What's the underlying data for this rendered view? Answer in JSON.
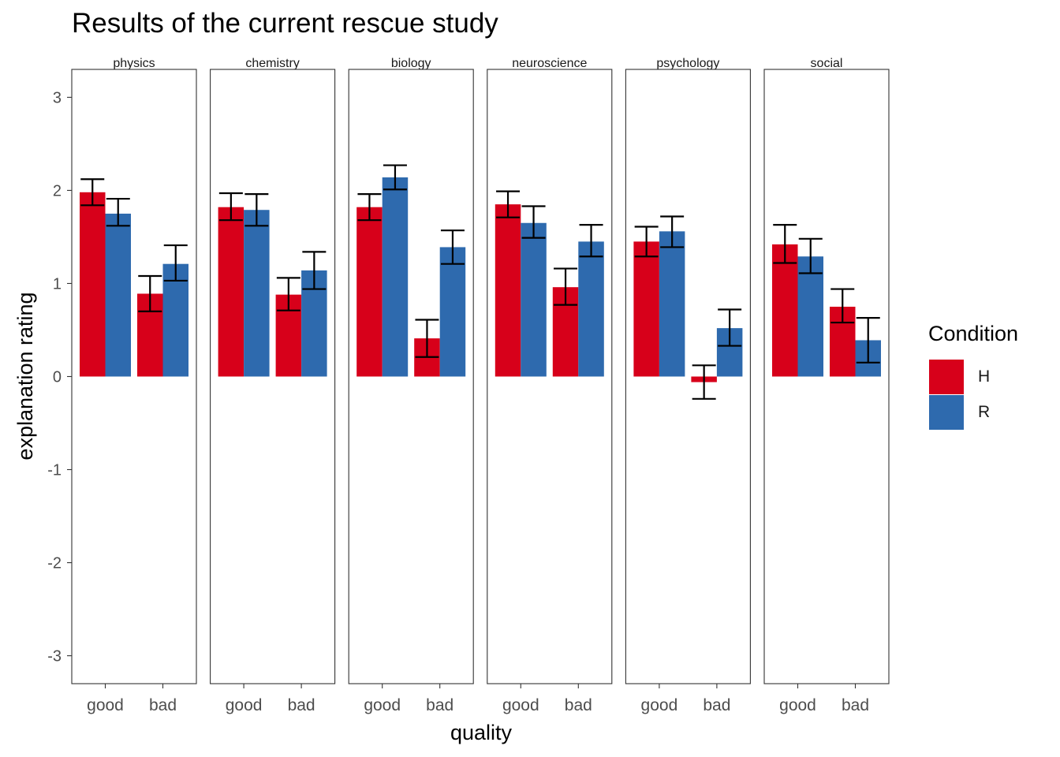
{
  "chart_data": {
    "type": "bar",
    "title": "Results of the current rescue study",
    "xlabel": "quality",
    "ylabel": "explanation rating",
    "ylim": [
      -3.3,
      3.3
    ],
    "yticks": [
      "-3",
      "-2",
      "-1",
      "0",
      "1",
      "2",
      "3"
    ],
    "ytick_values": [
      -3,
      -2,
      -1,
      0,
      1,
      2,
      3
    ],
    "categories": [
      "good",
      "bad"
    ],
    "grid": false,
    "legend": {
      "title": "Condition",
      "placement": "right",
      "entries": [
        {
          "label": "H",
          "color": "#D7001A"
        },
        {
          "label": "R",
          "color": "#2E6AAE"
        }
      ]
    },
    "facets": [
      {
        "name": "physics",
        "series": [
          {
            "name": "H",
            "values": [
              1.98,
              0.89
            ],
            "error_low": [
              1.84,
              0.7
            ],
            "error_high": [
              2.12,
              1.08
            ]
          },
          {
            "name": "R",
            "values": [
              1.75,
              1.21
            ],
            "error_low": [
              1.62,
              1.03
            ],
            "error_high": [
              1.91,
              1.41
            ]
          }
        ]
      },
      {
        "name": "chemistry",
        "series": [
          {
            "name": "H",
            "values": [
              1.82,
              0.88
            ],
            "error_low": [
              1.68,
              0.71
            ],
            "error_high": [
              1.97,
              1.06
            ]
          },
          {
            "name": "R",
            "values": [
              1.79,
              1.14
            ],
            "error_low": [
              1.62,
              0.94
            ],
            "error_high": [
              1.96,
              1.34
            ]
          }
        ]
      },
      {
        "name": "biology",
        "series": [
          {
            "name": "H",
            "values": [
              1.82,
              0.41
            ],
            "error_low": [
              1.68,
              0.21
            ],
            "error_high": [
              1.96,
              0.61
            ]
          },
          {
            "name": "R",
            "values": [
              2.14,
              1.39
            ],
            "error_low": [
              2.01,
              1.21
            ],
            "error_high": [
              2.27,
              1.57
            ]
          }
        ]
      },
      {
        "name": "neuroscience",
        "series": [
          {
            "name": "H",
            "values": [
              1.85,
              0.96
            ],
            "error_low": [
              1.71,
              0.77
            ],
            "error_high": [
              1.99,
              1.16
            ]
          },
          {
            "name": "R",
            "values": [
              1.65,
              1.45
            ],
            "error_low": [
              1.49,
              1.29
            ],
            "error_high": [
              1.83,
              1.63
            ]
          }
        ]
      },
      {
        "name": "psychology",
        "series": [
          {
            "name": "H",
            "values": [
              1.45,
              -0.06
            ],
            "error_low": [
              1.29,
              -0.24
            ],
            "error_high": [
              1.61,
              0.12
            ]
          },
          {
            "name": "R",
            "values": [
              1.56,
              0.52
            ],
            "error_low": [
              1.39,
              0.33
            ],
            "error_high": [
              1.72,
              0.72
            ]
          }
        ]
      },
      {
        "name": "social",
        "series": [
          {
            "name": "H",
            "values": [
              1.42,
              0.75
            ],
            "error_low": [
              1.22,
              0.58
            ],
            "error_high": [
              1.63,
              0.94
            ]
          },
          {
            "name": "R",
            "values": [
              1.29,
              0.39
            ],
            "error_low": [
              1.11,
              0.15
            ],
            "error_high": [
              1.48,
              0.63
            ]
          }
        ]
      }
    ]
  }
}
